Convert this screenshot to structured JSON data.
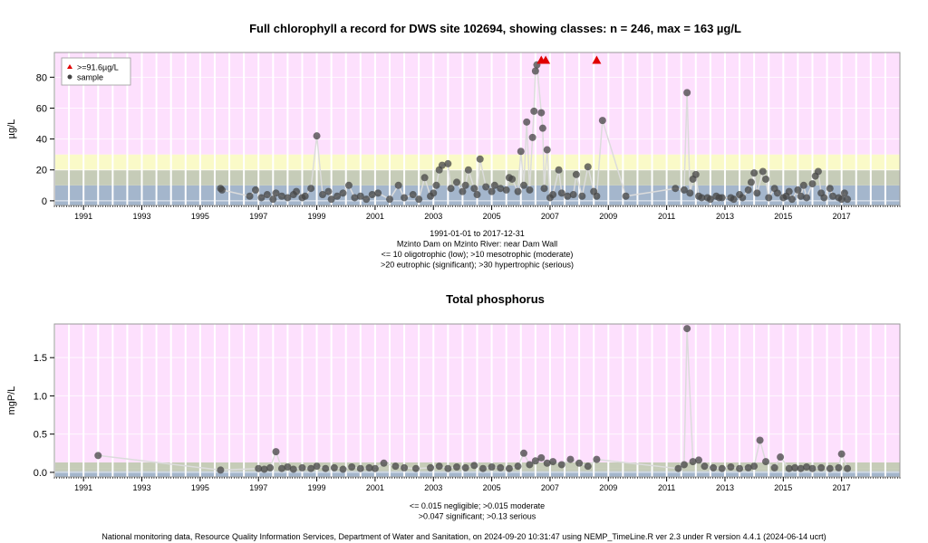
{
  "chart_data": [
    {
      "type": "scatter",
      "title": "Full chlorophyll a record for DWS site 102694, showing classes: n = 246, max = 163 µg/L",
      "ylabel": "µg/L",
      "xlim": [
        1990.0,
        2019.0
      ],
      "ylim": [
        -3,
        96
      ],
      "yticks": [
        0,
        20,
        40,
        60,
        80
      ],
      "xticks": [
        1991,
        1993,
        1995,
        1997,
        1999,
        2001,
        2003,
        2005,
        2007,
        2009,
        2011,
        2013,
        2015,
        2017
      ],
      "grid": true,
      "legend_position": "top-left",
      "legend": [
        {
          "label": ">=91.6µg/L",
          "marker": "triangle",
          "color": "#e00000"
        },
        {
          "label": "sample",
          "marker": "circle",
          "color": "#444444"
        }
      ],
      "bands": [
        {
          "from": -3,
          "to": 10,
          "color": "#a4b6cc"
        },
        {
          "from": 10,
          "to": 20,
          "color": "#c6ccb8"
        },
        {
          "from": 20,
          "to": 30,
          "color": "#fafac8"
        },
        {
          "from": 30,
          "to": 96,
          "color": "#fde0fd"
        }
      ],
      "captions": [
        "1991-01-01 to 2017-12-31",
        "Mzinto Dam on Mzinto River: near Dam Wall",
        "<= 10 oligotrophic (low); >10 mesotrophic (moderate)",
        ">20 eutrophic (significant); >30 hypertrophic (serious)"
      ],
      "series": [
        {
          "name": "sample",
          "points": [
            [
              1995.7,
              8
            ],
            [
              1995.75,
              7
            ],
            [
              1996.7,
              3
            ],
            [
              1996.9,
              7
            ],
            [
              1997.1,
              2
            ],
            [
              1997.3,
              4
            ],
            [
              1997.5,
              1
            ],
            [
              1997.6,
              5
            ],
            [
              1997.8,
              3
            ],
            [
              1998.0,
              2
            ],
            [
              1998.2,
              4
            ],
            [
              1998.3,
              6
            ],
            [
              1998.5,
              2
            ],
            [
              1998.6,
              3
            ],
            [
              1998.8,
              8
            ],
            [
              1999.0,
              42
            ],
            [
              1999.2,
              4
            ],
            [
              1999.4,
              6
            ],
            [
              1999.5,
              1
            ],
            [
              1999.7,
              3
            ],
            [
              1999.9,
              5
            ],
            [
              2000.1,
              10
            ],
            [
              2000.3,
              2
            ],
            [
              2000.5,
              3
            ],
            [
              2000.7,
              1
            ],
            [
              2000.9,
              4
            ],
            [
              2001.1,
              5
            ],
            [
              2001.5,
              1
            ],
            [
              2001.8,
              10
            ],
            [
              2002.0,
              2
            ],
            [
              2002.3,
              4
            ],
            [
              2002.5,
              1
            ],
            [
              2002.7,
              15
            ],
            [
              2002.9,
              3
            ],
            [
              2003.0,
              5
            ],
            [
              2003.1,
              10
            ],
            [
              2003.2,
              20
            ],
            [
              2003.3,
              23
            ],
            [
              2003.5,
              24
            ],
            [
              2003.6,
              8
            ],
            [
              2003.8,
              12
            ],
            [
              2004.0,
              6
            ],
            [
              2004.1,
              10
            ],
            [
              2004.2,
              20
            ],
            [
              2004.4,
              8
            ],
            [
              2004.5,
              4
            ],
            [
              2004.6,
              27
            ],
            [
              2004.8,
              9
            ],
            [
              2005.0,
              6
            ],
            [
              2005.1,
              10
            ],
            [
              2005.3,
              8
            ],
            [
              2005.5,
              7
            ],
            [
              2005.6,
              15
            ],
            [
              2005.7,
              14
            ],
            [
              2005.9,
              6
            ],
            [
              2006.0,
              32
            ],
            [
              2006.1,
              10
            ],
            [
              2006.2,
              51
            ],
            [
              2006.3,
              7
            ],
            [
              2006.4,
              41
            ],
            [
              2006.45,
              58
            ],
            [
              2006.5,
              84
            ],
            [
              2006.55,
              88
            ],
            [
              2006.7,
              57
            ],
            [
              2006.75,
              47
            ],
            [
              2006.8,
              8
            ],
            [
              2006.9,
              33
            ],
            [
              2007.0,
              2
            ],
            [
              2007.1,
              4
            ],
            [
              2007.3,
              20
            ],
            [
              2007.4,
              5
            ],
            [
              2007.6,
              3
            ],
            [
              2007.8,
              4
            ],
            [
              2007.9,
              17
            ],
            [
              2008.1,
              3
            ],
            [
              2008.3,
              22
            ],
            [
              2008.5,
              6
            ],
            [
              2008.6,
              3
            ],
            [
              2008.8,
              52
            ],
            [
              2009.6,
              3
            ],
            [
              2011.3,
              8
            ],
            [
              2011.6,
              7
            ],
            [
              2011.7,
              70
            ],
            [
              2011.8,
              5
            ],
            [
              2011.9,
              14
            ],
            [
              2012.0,
              17
            ],
            [
              2012.1,
              3
            ],
            [
              2012.2,
              2
            ],
            [
              2012.4,
              2
            ],
            [
              2012.5,
              1
            ],
            [
              2012.7,
              3
            ],
            [
              2012.8,
              2
            ],
            [
              2012.9,
              2
            ],
            [
              2013.2,
              2
            ],
            [
              2013.3,
              1
            ],
            [
              2013.5,
              4
            ],
            [
              2013.6,
              2
            ],
            [
              2013.8,
              7
            ],
            [
              2013.9,
              12
            ],
            [
              2014.0,
              18
            ],
            [
              2014.1,
              5
            ],
            [
              2014.3,
              19
            ],
            [
              2014.4,
              14
            ],
            [
              2014.5,
              2
            ],
            [
              2014.7,
              8
            ],
            [
              2014.8,
              5
            ],
            [
              2015.0,
              2
            ],
            [
              2015.1,
              3
            ],
            [
              2015.2,
              6
            ],
            [
              2015.3,
              1
            ],
            [
              2015.5,
              7
            ],
            [
              2015.6,
              3
            ],
            [
              2015.7,
              10
            ],
            [
              2015.8,
              2
            ],
            [
              2016.0,
              11
            ],
            [
              2016.1,
              16
            ],
            [
              2016.2,
              19
            ],
            [
              2016.3,
              5
            ],
            [
              2016.4,
              2
            ],
            [
              2016.6,
              8
            ],
            [
              2016.7,
              3
            ],
            [
              2016.9,
              2
            ],
            [
              2017.0,
              1
            ],
            [
              2017.1,
              5
            ],
            [
              2017.2,
              1
            ]
          ]
        },
        {
          "name": ">=91.6µg/L",
          "points": [
            [
              2006.7,
              91
            ],
            [
              2006.85,
              91
            ],
            [
              2008.6,
              91
            ]
          ]
        }
      ]
    },
    {
      "type": "scatter",
      "title": "Total phosphorus",
      "ylabel": "mgP/L",
      "xlim": [
        1990.0,
        2019.0
      ],
      "ylim": [
        -0.06,
        1.94
      ],
      "yticks": [
        0.0,
        0.5,
        1.0,
        1.5
      ],
      "ytick_labels": [
        "0.0",
        "0.5",
        "1.0",
        "1.5"
      ],
      "xticks": [
        1991,
        1993,
        1995,
        1997,
        1999,
        2001,
        2003,
        2005,
        2007,
        2009,
        2011,
        2013,
        2015,
        2017
      ],
      "grid": true,
      "bands": [
        {
          "from": -0.06,
          "to": 0.015,
          "color": "#a4b6cc"
        },
        {
          "from": 0.015,
          "to": 0.047,
          "color": "#c6ccb8"
        },
        {
          "from": 0.047,
          "to": 0.13,
          "color": "#c6ccb8"
        },
        {
          "from": 0.13,
          "to": 1.94,
          "color": "#fde0fd"
        }
      ],
      "captions": [
        "<= 0.015 negligible; >0.015 moderate",
        ">0.047 significant; >0.13 serious"
      ],
      "series": [
        {
          "name": "sample",
          "points": [
            [
              1991.5,
              0.22
            ],
            [
              1995.7,
              0.03
            ],
            [
              1997.0,
              0.05
            ],
            [
              1997.2,
              0.04
            ],
            [
              1997.4,
              0.06
            ],
            [
              1997.6,
              0.27
            ],
            [
              1997.8,
              0.05
            ],
            [
              1998.0,
              0.07
            ],
            [
              1998.2,
              0.04
            ],
            [
              1998.5,
              0.06
            ],
            [
              1998.8,
              0.05
            ],
            [
              1999.0,
              0.08
            ],
            [
              1999.3,
              0.05
            ],
            [
              1999.6,
              0.06
            ],
            [
              1999.9,
              0.04
            ],
            [
              2000.2,
              0.07
            ],
            [
              2000.5,
              0.05
            ],
            [
              2000.8,
              0.06
            ],
            [
              2001.0,
              0.05
            ],
            [
              2001.3,
              0.12
            ],
            [
              2001.7,
              0.08
            ],
            [
              2002.0,
              0.06
            ],
            [
              2002.4,
              0.05
            ],
            [
              2002.9,
              0.06
            ],
            [
              2003.2,
              0.08
            ],
            [
              2003.5,
              0.05
            ],
            [
              2003.8,
              0.07
            ],
            [
              2004.1,
              0.06
            ],
            [
              2004.4,
              0.09
            ],
            [
              2004.7,
              0.05
            ],
            [
              2005.0,
              0.07
            ],
            [
              2005.3,
              0.06
            ],
            [
              2005.6,
              0.05
            ],
            [
              2005.9,
              0.08
            ],
            [
              2006.1,
              0.25
            ],
            [
              2006.3,
              0.1
            ],
            [
              2006.5,
              0.15
            ],
            [
              2006.7,
              0.19
            ],
            [
              2006.9,
              0.12
            ],
            [
              2007.1,
              0.14
            ],
            [
              2007.4,
              0.1
            ],
            [
              2007.7,
              0.17
            ],
            [
              2008.0,
              0.12
            ],
            [
              2008.3,
              0.08
            ],
            [
              2008.6,
              0.17
            ],
            [
              2011.4,
              0.05
            ],
            [
              2011.6,
              0.1
            ],
            [
              2011.7,
              1.88
            ],
            [
              2011.9,
              0.14
            ],
            [
              2012.1,
              0.16
            ],
            [
              2012.3,
              0.08
            ],
            [
              2012.6,
              0.06
            ],
            [
              2012.9,
              0.05
            ],
            [
              2013.2,
              0.07
            ],
            [
              2013.5,
              0.05
            ],
            [
              2013.8,
              0.06
            ],
            [
              2014.0,
              0.08
            ],
            [
              2014.2,
              0.42
            ],
            [
              2014.4,
              0.14
            ],
            [
              2014.7,
              0.06
            ],
            [
              2014.9,
              0.2
            ],
            [
              2015.2,
              0.05
            ],
            [
              2015.4,
              0.06
            ],
            [
              2015.6,
              0.05
            ],
            [
              2015.8,
              0.07
            ],
            [
              2016.0,
              0.05
            ],
            [
              2016.3,
              0.06
            ],
            [
              2016.6,
              0.05
            ],
            [
              2016.9,
              0.06
            ],
            [
              2017.0,
              0.24
            ],
            [
              2017.2,
              0.05
            ]
          ]
        }
      ]
    }
  ],
  "footer": "National monitoring data, Resource Quality Information Services, Department of Water and Sanitation, on 2024-09-20 10:31:47 using NEMP_TimeLine.R ver 2.3 under R version 4.4.1 (2024-06-14 ucrt)"
}
